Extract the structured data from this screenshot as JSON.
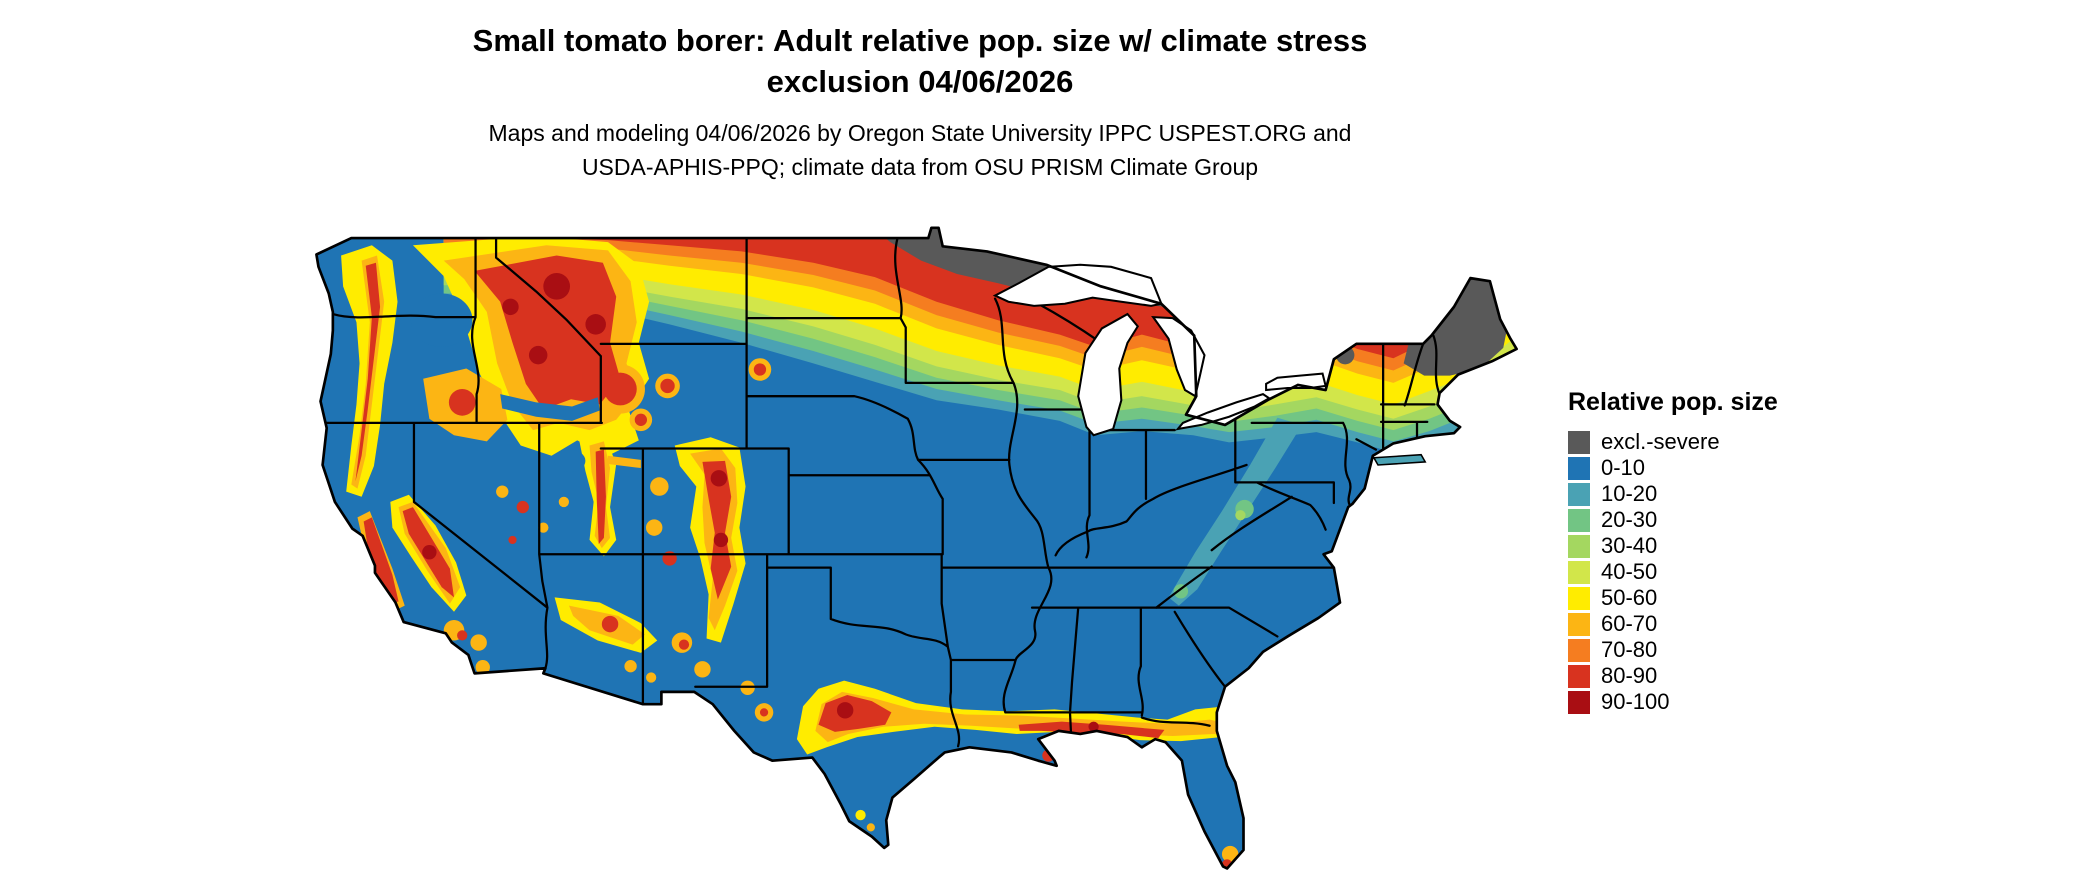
{
  "title": {
    "line1": "Small tomato borer: Adult relative pop. size w/ climate stress",
    "line2": "exclusion 04/06/2026"
  },
  "subtitle": {
    "line1": "Maps and modeling 04/06/2026 by Oregon State University IPPC USPEST.ORG and",
    "line2": "USDA-APHIS-PPQ; climate data from OSU PRISM Climate Group"
  },
  "legend": {
    "title": "Relative pop. size",
    "items": [
      {
        "label": "excl.-severe",
        "color": "#595959"
      },
      {
        "label": "0-10",
        "color": "#1f74b4"
      },
      {
        "label": "10-20",
        "color": "#4aa2b4"
      },
      {
        "label": "20-30",
        "color": "#72c584"
      },
      {
        "label": "30-40",
        "color": "#a4d760"
      },
      {
        "label": "40-50",
        "color": "#d2e64a"
      },
      {
        "label": "50-60",
        "color": "#ffec00"
      },
      {
        "label": "60-70",
        "color": "#fcb514"
      },
      {
        "label": "70-80",
        "color": "#f57d20"
      },
      {
        "label": "80-90",
        "color": "#d8331f"
      },
      {
        "label": "90-100",
        "color": "#a90e13"
      }
    ]
  },
  "map": {
    "region": "Contiguous United States",
    "type": "raster choropleth of relative population size with climate stress exclusion",
    "ocean_color": "#ffffff",
    "state_border_color": "#000000",
    "pattern_notes": "Blue (0-10) across most of the country; yellow-orange-red-gray gradient along the northern tier (gray excl.-severe over MN, WI, northern MI, northern New England); red/orange over western mountain ranges (Cascades, Sierra Nevada, Rockies, Wasatch, Mogollon); yellow-orange-red band along the Gulf coast from central Texas to north Florida"
  }
}
